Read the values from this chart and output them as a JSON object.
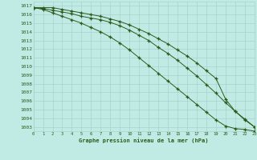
{
  "x": [
    0,
    1,
    2,
    3,
    4,
    5,
    6,
    7,
    8,
    9,
    10,
    11,
    12,
    13,
    14,
    15,
    16,
    17,
    18,
    19,
    20,
    21,
    22,
    23
  ],
  "line1": [
    1016.8,
    1016.7,
    1016.5,
    1016.3,
    1016.1,
    1015.8,
    1015.6,
    1015.4,
    1015.1,
    1014.7,
    1014.2,
    1013.6,
    1013.0,
    1012.2,
    1011.5,
    1010.7,
    1009.8,
    1008.9,
    1007.9,
    1006.9,
    1005.8,
    1004.8,
    1003.9,
    1003.0
  ],
  "line2": [
    1016.8,
    1016.6,
    1016.2,
    1015.8,
    1015.4,
    1015.0,
    1014.5,
    1014.0,
    1013.4,
    1012.7,
    1011.9,
    1011.0,
    1010.1,
    1009.2,
    1008.3,
    1007.4,
    1006.5,
    1005.6,
    1004.7,
    1003.8,
    1003.1,
    1002.8,
    1002.7,
    1002.5
  ],
  "line3": [
    1016.8,
    1016.8,
    1016.8,
    1016.6,
    1016.4,
    1016.2,
    1016.0,
    1015.8,
    1015.5,
    1015.2,
    1014.8,
    1014.3,
    1013.8,
    1013.2,
    1012.6,
    1011.9,
    1011.2,
    1010.4,
    1009.5,
    1008.6,
    1006.2,
    1004.8,
    1003.8,
    1003.0
  ],
  "line_color": "#2d5a1b",
  "bg_color": "#c0ebe5",
  "grid_color": "#a8d4ce",
  "xlabel": "Graphe pression niveau de la mer (hPa)",
  "ylim": [
    1002.5,
    1017.5
  ],
  "xlim": [
    0,
    23
  ],
  "yticks": [
    1003,
    1004,
    1005,
    1006,
    1007,
    1008,
    1009,
    1010,
    1011,
    1012,
    1013,
    1014,
    1015,
    1016,
    1017
  ],
  "xticks": [
    0,
    1,
    2,
    3,
    4,
    5,
    6,
    7,
    8,
    9,
    10,
    11,
    12,
    13,
    14,
    15,
    16,
    17,
    18,
    19,
    20,
    21,
    22,
    23
  ],
  "figsize": [
    3.2,
    2.0
  ],
  "dpi": 100
}
